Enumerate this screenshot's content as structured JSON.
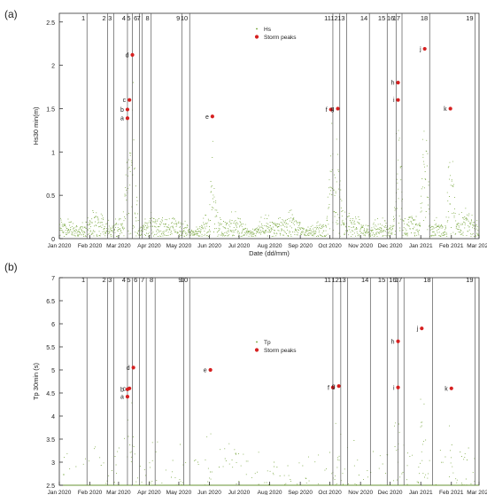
{
  "chart_data": [
    {
      "panel_label": "(a)",
      "type": "scatter",
      "ylabel": "Hs30 min(m)",
      "xlabel": "Date (dd/mm)",
      "x_tick_labels": [
        "Jan 2020",
        "Feb 2020",
        "Mar 2020",
        "Apr 2020",
        "May 2020",
        "Jun 2020",
        "Jul 2020",
        "Aug 2020",
        "Sep 2020",
        "Oct 2020",
        "Nov 2020",
        "Dec 2020",
        "Jan 2021",
        "Feb 2021",
        "Mar 2021"
      ],
      "x_range": [
        "2020-01-01",
        "2021-03-01"
      ],
      "ylim": [
        0,
        2.6
      ],
      "y_ticks": [
        0,
        0.5,
        1,
        1.5,
        2,
        2.5
      ],
      "y_tick_labels": [
        "0",
        "0.5",
        "1",
        "1.5",
        "2",
        "2.5"
      ],
      "legend": {
        "position": "top-center",
        "entries": [
          {
            "label": "Hs",
            "color": "#6a9e2a"
          },
          {
            "label": "Storm peaks",
            "color": "#d62020"
          }
        ]
      },
      "storm_lines": [
        {
          "label": "1",
          "date": "2020-01-29"
        },
        {
          "label": "2",
          "date": "2020-02-19"
        },
        {
          "label": "3",
          "date": "2020-02-25"
        },
        {
          "label": "4",
          "date": "2020-03-10"
        },
        {
          "label": "5",
          "date": "2020-03-15"
        },
        {
          "label": "6",
          "date": "2020-03-22"
        },
        {
          "label": "7",
          "date": "2020-03-25"
        },
        {
          "label": "8",
          "date": "2020-04-03"
        },
        {
          "label": "9",
          "date": "2020-05-04"
        },
        {
          "label": "10",
          "date": "2020-05-12"
        },
        {
          "label": "11",
          "date": "2020-10-04"
        },
        {
          "label": "12",
          "date": "2020-10-11"
        },
        {
          "label": "13",
          "date": "2020-10-18"
        },
        {
          "label": "14",
          "date": "2020-11-10"
        },
        {
          "label": "15",
          "date": "2020-11-28"
        },
        {
          "label": "16",
          "date": "2020-12-07"
        },
        {
          "label": "17",
          "date": "2020-12-13"
        },
        {
          "label": "18",
          "date": "2021-01-10"
        },
        {
          "label": "19",
          "date": "2021-02-25"
        }
      ],
      "storm_peaks": [
        {
          "label": "a",
          "date": "2020-03-10",
          "value": 1.39
        },
        {
          "label": "b",
          "date": "2020-03-10",
          "value": 1.49
        },
        {
          "label": "c",
          "date": "2020-03-12",
          "value": 1.6
        },
        {
          "label": "d",
          "date": "2020-03-15",
          "value": 2.12
        },
        {
          "label": "e",
          "date": "2020-06-04",
          "value": 1.41
        },
        {
          "label": "f",
          "date": "2020-10-02",
          "value": 1.49
        },
        {
          "label": "g",
          "date": "2020-10-09",
          "value": 1.5
        },
        {
          "label": "h",
          "date": "2020-12-09",
          "value": 1.8
        },
        {
          "label": "i",
          "date": "2020-12-09",
          "value": 1.6
        },
        {
          "label": "j",
          "date": "2021-01-05",
          "value": 2.19
        },
        {
          "label": "k",
          "date": "2021-01-31",
          "value": 1.5
        }
      ]
    },
    {
      "panel_label": "(b)",
      "type": "scatter",
      "ylabel": "Tp 30min (s)",
      "xlabel": "Date (mm/yyyy)",
      "x_tick_labels": [
        "Jan 2020",
        "Feb 2020",
        "Mar 2020",
        "Apr 2020",
        "May 2020",
        "Jun 2020",
        "Jul 2020",
        "Aug 2020",
        "Sep 2020",
        "Oct 2020",
        "Nov 2020",
        "Dec 2020",
        "Jan 2021",
        "Feb 2021",
        "Mar 2021"
      ],
      "x_range": [
        "2020-01-01",
        "2021-03-01"
      ],
      "ylim": [
        2.5,
        7
      ],
      "y_ticks": [
        2.5,
        3,
        3.5,
        4,
        4.5,
        5,
        5.5,
        6,
        6.5,
        7
      ],
      "y_tick_labels": [
        "2.5",
        "3",
        "3.5",
        "4",
        "4.5",
        "5",
        "5.5",
        "6",
        "6.5",
        "7"
      ],
      "legend": {
        "position": "center",
        "entries": [
          {
            "label": "Tp",
            "color": "#6a9e2a"
          },
          {
            "label": "Storm peaks",
            "color": "#d62020"
          }
        ]
      },
      "storm_lines": [
        {
          "label": "1",
          "date": "2020-01-29"
        },
        {
          "label": "2",
          "date": "2020-02-19"
        },
        {
          "label": "3",
          "date": "2020-02-25"
        },
        {
          "label": "4",
          "date": "2020-03-10"
        },
        {
          "label": "5",
          "date": "2020-03-15"
        },
        {
          "label": "6",
          "date": "2020-03-22"
        },
        {
          "label": "7",
          "date": "2020-03-29"
        },
        {
          "label": "8",
          "date": "2020-04-07"
        },
        {
          "label": "9",
          "date": "2020-05-06"
        },
        {
          "label": "10",
          "date": "2020-05-12"
        },
        {
          "label": "11",
          "date": "2020-10-04"
        },
        {
          "label": "12",
          "date": "2020-10-12"
        },
        {
          "label": "13",
          "date": "2020-10-19"
        },
        {
          "label": "14",
          "date": "2020-11-11"
        },
        {
          "label": "15",
          "date": "2020-11-28"
        },
        {
          "label": "16",
          "date": "2020-12-09"
        },
        {
          "label": "17",
          "date": "2020-12-15"
        },
        {
          "label": "18",
          "date": "2021-01-13"
        },
        {
          "label": "19",
          "date": "2021-02-25"
        }
      ],
      "storm_peaks": [
        {
          "label": "a",
          "date": "2020-03-10",
          "value": 4.42
        },
        {
          "label": "b",
          "date": "2020-03-10",
          "value": 4.58
        },
        {
          "label": "c",
          "date": "2020-03-12",
          "value": 4.6
        },
        {
          "label": "d",
          "date": "2020-03-16",
          "value": 5.05
        },
        {
          "label": "e",
          "date": "2020-06-02",
          "value": 5.0
        },
        {
          "label": "f",
          "date": "2020-10-04",
          "value": 4.62
        },
        {
          "label": "g",
          "date": "2020-10-10",
          "value": 4.65
        },
        {
          "label": "h",
          "date": "2020-12-09",
          "value": 5.62
        },
        {
          "label": "i",
          "date": "2020-12-09",
          "value": 4.62
        },
        {
          "label": "j",
          "date": "2021-01-02",
          "value": 5.9
        },
        {
          "label": "k",
          "date": "2021-02-01",
          "value": 4.6
        }
      ]
    }
  ]
}
